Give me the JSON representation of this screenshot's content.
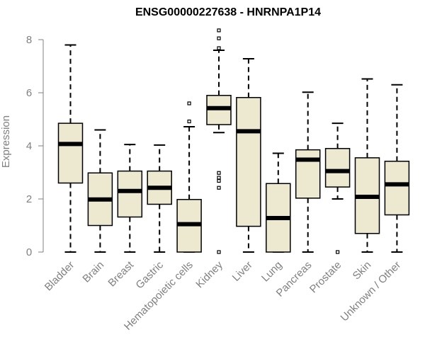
{
  "chart_data": {
    "type": "boxplot",
    "title": "ENSG00000227638 - HNRNPA1P14",
    "xlabel": "",
    "ylabel": "Expression",
    "ylim": [
      0,
      8
    ],
    "yticks": [
      0,
      2,
      4,
      6,
      8
    ],
    "grid": false,
    "legend": "none",
    "colors": {
      "box_fill": "#EDE8D0",
      "box_stroke": "#000000",
      "axis": "#808080",
      "title": "#000000"
    },
    "categories": [
      "Bladder",
      "Brain",
      "Breast",
      "Gastric",
      "Hematopoietic cells",
      "Kidney",
      "Liver",
      "Lung",
      "Pancreas",
      "Prostate",
      "Skin",
      "Unknown / Other"
    ],
    "boxes": [
      {
        "category": "Bladder",
        "whisker_low": 0,
        "q1": 2.6,
        "median": 4.07,
        "q3": 4.85,
        "whisker_high": 7.8,
        "outliers": []
      },
      {
        "category": "Brain",
        "whisker_low": 0,
        "q1": 1.0,
        "median": 1.98,
        "q3": 2.98,
        "whisker_high": 4.6,
        "outliers": []
      },
      {
        "category": "Breast",
        "whisker_low": 0,
        "q1": 1.32,
        "median": 2.3,
        "q3": 3.05,
        "whisker_high": 4.05,
        "outliers": []
      },
      {
        "category": "Gastric",
        "whisker_low": 0,
        "q1": 1.8,
        "median": 2.42,
        "q3": 3.05,
        "whisker_high": 4.03,
        "outliers": []
      },
      {
        "category": "Hematopoietic cells",
        "whisker_low": 0,
        "q1": 0,
        "median": 1.05,
        "q3": 1.98,
        "whisker_high": 4.72,
        "outliers": [
          4.92,
          5.6
        ]
      },
      {
        "category": "Kidney",
        "whisker_low": 4.5,
        "q1": 4.8,
        "median": 5.42,
        "q3": 5.9,
        "whisker_high": 7.6,
        "outliers": [
          0,
          2.42,
          2.68,
          2.8,
          2.98,
          7.68,
          8.05,
          8.35
        ]
      },
      {
        "category": "Liver",
        "whisker_low": 0,
        "q1": 0.97,
        "median": 4.55,
        "q3": 5.82,
        "whisker_high": 7.28,
        "outliers": []
      },
      {
        "category": "Lung",
        "whisker_low": 0,
        "q1": 0,
        "median": 1.28,
        "q3": 2.58,
        "whisker_high": 3.72,
        "outliers": []
      },
      {
        "category": "Pancreas",
        "whisker_low": 0,
        "q1": 2.03,
        "median": 3.48,
        "q3": 3.85,
        "whisker_high": 6.02,
        "outliers": []
      },
      {
        "category": "Prostate",
        "whisker_low": 2.0,
        "q1": 2.45,
        "median": 3.05,
        "q3": 3.9,
        "whisker_high": 4.85,
        "outliers": [
          0
        ]
      },
      {
        "category": "Skin",
        "whisker_low": 0,
        "q1": 0.7,
        "median": 2.08,
        "q3": 3.55,
        "whisker_high": 6.52,
        "outliers": []
      },
      {
        "category": "Unknown / Other",
        "whisker_low": 0,
        "q1": 1.4,
        "median": 2.55,
        "q3": 3.42,
        "whisker_high": 6.3,
        "outliers": []
      }
    ]
  }
}
